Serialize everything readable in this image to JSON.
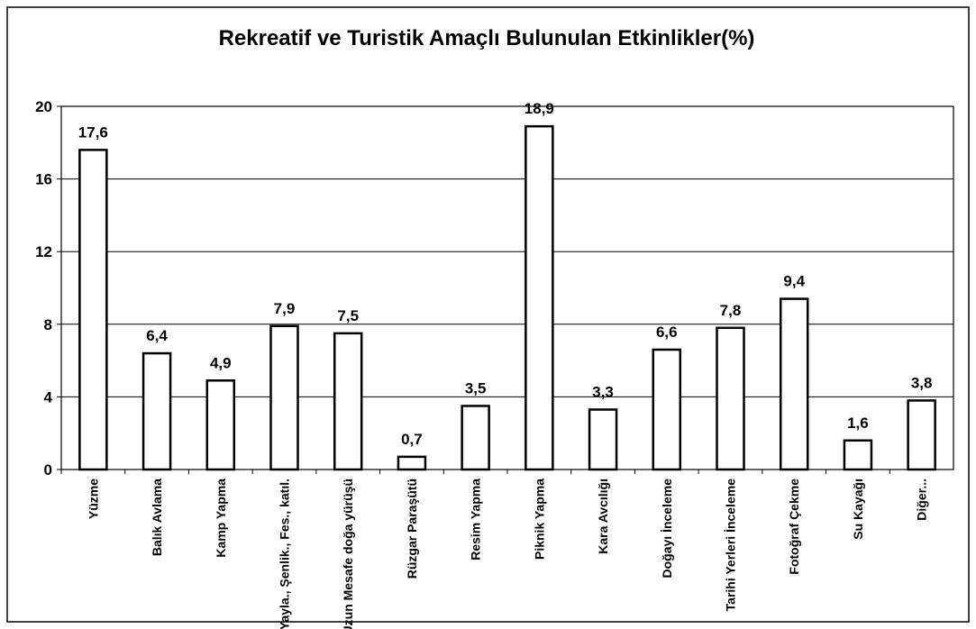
{
  "chart_data": {
    "type": "bar",
    "title": "Rekreatif ve Turistik Amaçlı Bulunulan Etkinlikler(%)",
    "categories": [
      "Yüzme",
      "Balık Avlama",
      "Kamp Yapma",
      "Yayla., Şenlik., Fes., katıl.",
      "Uzun Mesafe doğa yürüşü",
      "Rüzgar Paraşütü",
      "Resim Yapma",
      "Piknik Yapma",
      "Kara Avcılığı",
      "Doğayı İnceleme",
      "Tarihi Yerleri İnceleme",
      "Fotoğraf Çekme",
      "Su Kayağı",
      "Diğer..."
    ],
    "values": [
      17.6,
      6.4,
      4.9,
      7.9,
      7.5,
      0.7,
      3.5,
      18.9,
      3.3,
      6.6,
      7.8,
      9.4,
      1.6,
      3.8
    ],
    "value_labels": [
      "17,6",
      "6,4",
      "4,9",
      "7,9",
      "7,5",
      "0,7",
      "3,5",
      "18,9",
      "3,3",
      "6,6",
      "7,8",
      "9,4",
      "1,6",
      "3,8"
    ],
    "color": "#ffffff",
    "ylim": [
      0,
      20
    ],
    "yticks": [
      0,
      4,
      8,
      12,
      16,
      20
    ],
    "grid": true
  }
}
